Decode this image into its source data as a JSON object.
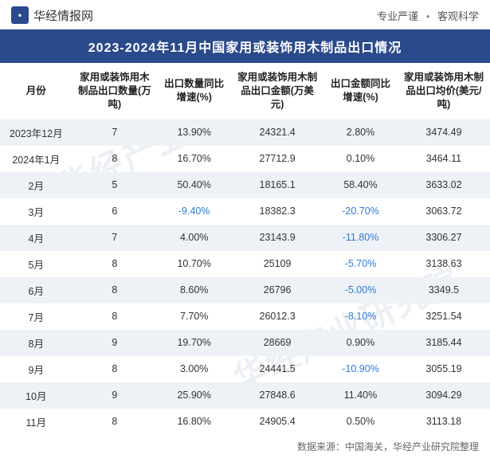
{
  "header": {
    "logo_letter": "•",
    "brand": "华经情报网",
    "slogan_left": "专业严谨",
    "slogan_right": "客观科学"
  },
  "watermark": "华经产业研究院",
  "title": "2023-2024年11月中国家用或装饰用木制品出口情况",
  "columns": [
    "月份",
    "家用或装饰用木制品出口数量(万吨)",
    "出口数量同比增速(%)",
    "家用或装饰用木制品出口金额(万美元)",
    "出口金额同比增速(%)",
    "家用或装饰用木制品出口均价(美元/吨)"
  ],
  "rows": [
    {
      "month": "2023年12月",
      "qty": "7",
      "qty_yoy": "13.90%",
      "qty_neg": false,
      "amt": "24321.4",
      "amt_yoy": "2.80%",
      "amt_neg": false,
      "price": "3474.49"
    },
    {
      "month": "2024年1月",
      "qty": "8",
      "qty_yoy": "16.70%",
      "qty_neg": false,
      "amt": "27712.9",
      "amt_yoy": "0.10%",
      "amt_neg": false,
      "price": "3464.11"
    },
    {
      "month": "2月",
      "qty": "5",
      "qty_yoy": "50.40%",
      "qty_neg": false,
      "amt": "18165.1",
      "amt_yoy": "58.40%",
      "amt_neg": false,
      "price": "3633.02"
    },
    {
      "month": "3月",
      "qty": "6",
      "qty_yoy": "-9.40%",
      "qty_neg": true,
      "amt": "18382.3",
      "amt_yoy": "-20.70%",
      "amt_neg": true,
      "price": "3063.72"
    },
    {
      "month": "4月",
      "qty": "7",
      "qty_yoy": "4.00%",
      "qty_neg": false,
      "amt": "23143.9",
      "amt_yoy": "-11.80%",
      "amt_neg": true,
      "price": "3306.27"
    },
    {
      "month": "5月",
      "qty": "8",
      "qty_yoy": "10.70%",
      "qty_neg": false,
      "amt": "25109",
      "amt_yoy": "-5.70%",
      "amt_neg": true,
      "price": "3138.63"
    },
    {
      "month": "6月",
      "qty": "8",
      "qty_yoy": "8.60%",
      "qty_neg": false,
      "amt": "26796",
      "amt_yoy": "-5.00%",
      "amt_neg": true,
      "price": "3349.5"
    },
    {
      "month": "7月",
      "qty": "8",
      "qty_yoy": "7.70%",
      "qty_neg": false,
      "amt": "26012.3",
      "amt_yoy": "-8.10%",
      "amt_neg": true,
      "price": "3251.54"
    },
    {
      "month": "8月",
      "qty": "9",
      "qty_yoy": "19.70%",
      "qty_neg": false,
      "amt": "28669",
      "amt_yoy": "0.90%",
      "amt_neg": false,
      "price": "3185.44"
    },
    {
      "month": "9月",
      "qty": "8",
      "qty_yoy": "3.00%",
      "qty_neg": false,
      "amt": "24441.5",
      "amt_yoy": "-10.90%",
      "amt_neg": true,
      "price": "3055.19"
    },
    {
      "month": "10月",
      "qty": "9",
      "qty_yoy": "25.90%",
      "qty_neg": false,
      "amt": "27848.6",
      "amt_yoy": "11.40%",
      "amt_neg": false,
      "price": "3094.29"
    },
    {
      "month": "11月",
      "qty": "8",
      "qty_yoy": "16.80%",
      "qty_neg": false,
      "amt": "24905.4",
      "amt_yoy": "0.50%",
      "amt_neg": false,
      "price": "3113.18"
    }
  ],
  "footer": "数据来源：中国海关，华经产业研究院整理",
  "colors": {
    "header_bg": "#2b4a8b",
    "stripe_bg": "#eef1f6",
    "negative_text": "#2e7cd6",
    "text": "#333333",
    "border": "#e5e5e5"
  }
}
